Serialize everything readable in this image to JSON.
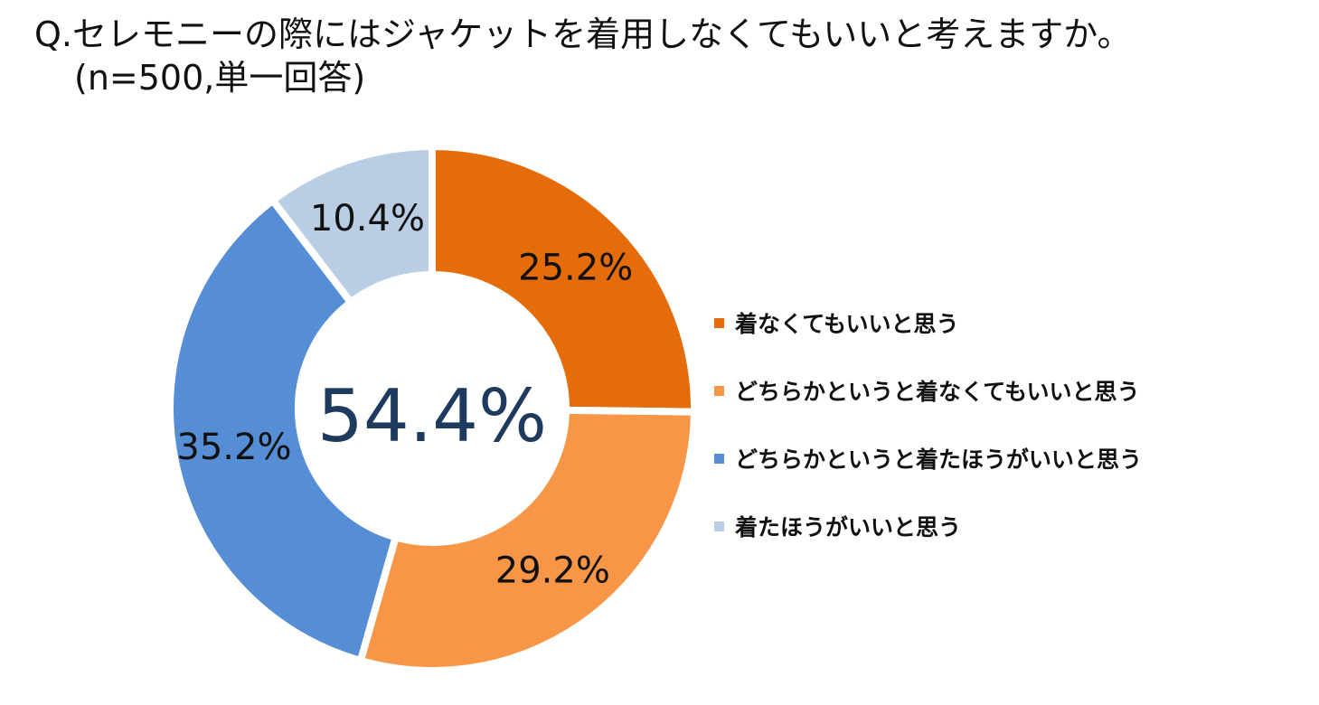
{
  "chart_data": {
    "type": "pie",
    "title_line1": "Q.セレモニーの際にはジャケットを着用しなくてもいいと考えますか。",
    "title_line2": "(n=500,単一回答)",
    "center_label": "54.4%",
    "categories": [
      "着なくてもいいと思う",
      "どちらかというと着なくてもいいと思う",
      "どちらかというと着たほうがいいと思う",
      "着たほうがいいと思う"
    ],
    "values": [
      25.2,
      29.2,
      35.2,
      10.4
    ],
    "value_labels": [
      "25.2%",
      "29.2%",
      "35.2%",
      "10.4%"
    ],
    "colors": [
      "#E46C0A",
      "#F79646",
      "#558ED5",
      "#B9CDE5"
    ],
    "legend_position": "right"
  }
}
